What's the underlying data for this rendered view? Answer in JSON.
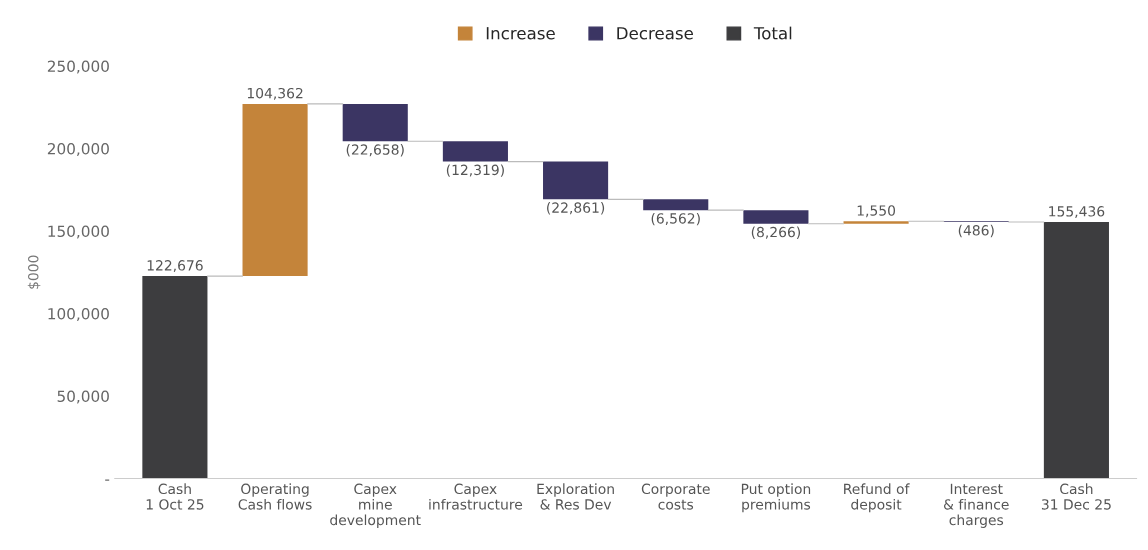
{
  "chart_data": {
    "type": "bar",
    "ylabel": "$000",
    "categories": [
      "Cash\n1 Oct 25",
      "Operating\nCash flows",
      "Capex\nmine\ndevelopment",
      "Capex\ninfrastructure",
      "Exploration\n& Res Dev",
      "Corporate\ncosts",
      "Put option\npremiums",
      "Refund of\ndeposit",
      "Interest\n& finance\ncharges",
      "Cash\n31 Dec 25"
    ],
    "series": [
      {
        "name": "Increase",
        "color": "#c4843a",
        "values": [
          null,
          104362,
          null,
          null,
          null,
          null,
          null,
          1550,
          null,
          null
        ],
        "base": [
          null,
          122676,
          null,
          null,
          null,
          null,
          null,
          154372,
          null,
          null
        ],
        "value_labels": [
          null,
          "104,362",
          null,
          null,
          null,
          null,
          null,
          "1,550",
          null,
          null
        ]
      },
      {
        "name": "Decrease",
        "color": "#3b3563",
        "values": [
          null,
          null,
          -22658,
          -12319,
          -22861,
          -6562,
          -8266,
          null,
          -486,
          null
        ],
        "base": [
          null,
          null,
          227038,
          204380,
          192061,
          169200,
          162638,
          null,
          155922,
          null
        ],
        "value_labels": [
          null,
          null,
          "(22,658)",
          "(12,319)",
          "(22,861)",
          "(6,562)",
          "(8,266)",
          null,
          "(486)",
          null
        ]
      },
      {
        "name": "Total",
        "color": "#3d3d3f",
        "values": [
          122676,
          null,
          null,
          null,
          null,
          null,
          null,
          null,
          null,
          155436
        ],
        "base": [
          0,
          null,
          null,
          null,
          null,
          null,
          null,
          null,
          null,
          0
        ],
        "value_labels": [
          "122,676",
          null,
          null,
          null,
          null,
          null,
          null,
          null,
          null,
          "155,436"
        ]
      }
    ],
    "ylim": [
      0,
      250000
    ],
    "yticks": [
      {
        "value": 0,
        "label": "-"
      },
      {
        "value": 50000,
        "label": "50,000"
      },
      {
        "value": 100000,
        "label": "100,000"
      },
      {
        "value": 150000,
        "label": "150,000"
      },
      {
        "value": 200000,
        "label": "200,000"
      },
      {
        "value": 250000,
        "label": "250,000"
      }
    ],
    "grid": false,
    "legend": "top"
  }
}
